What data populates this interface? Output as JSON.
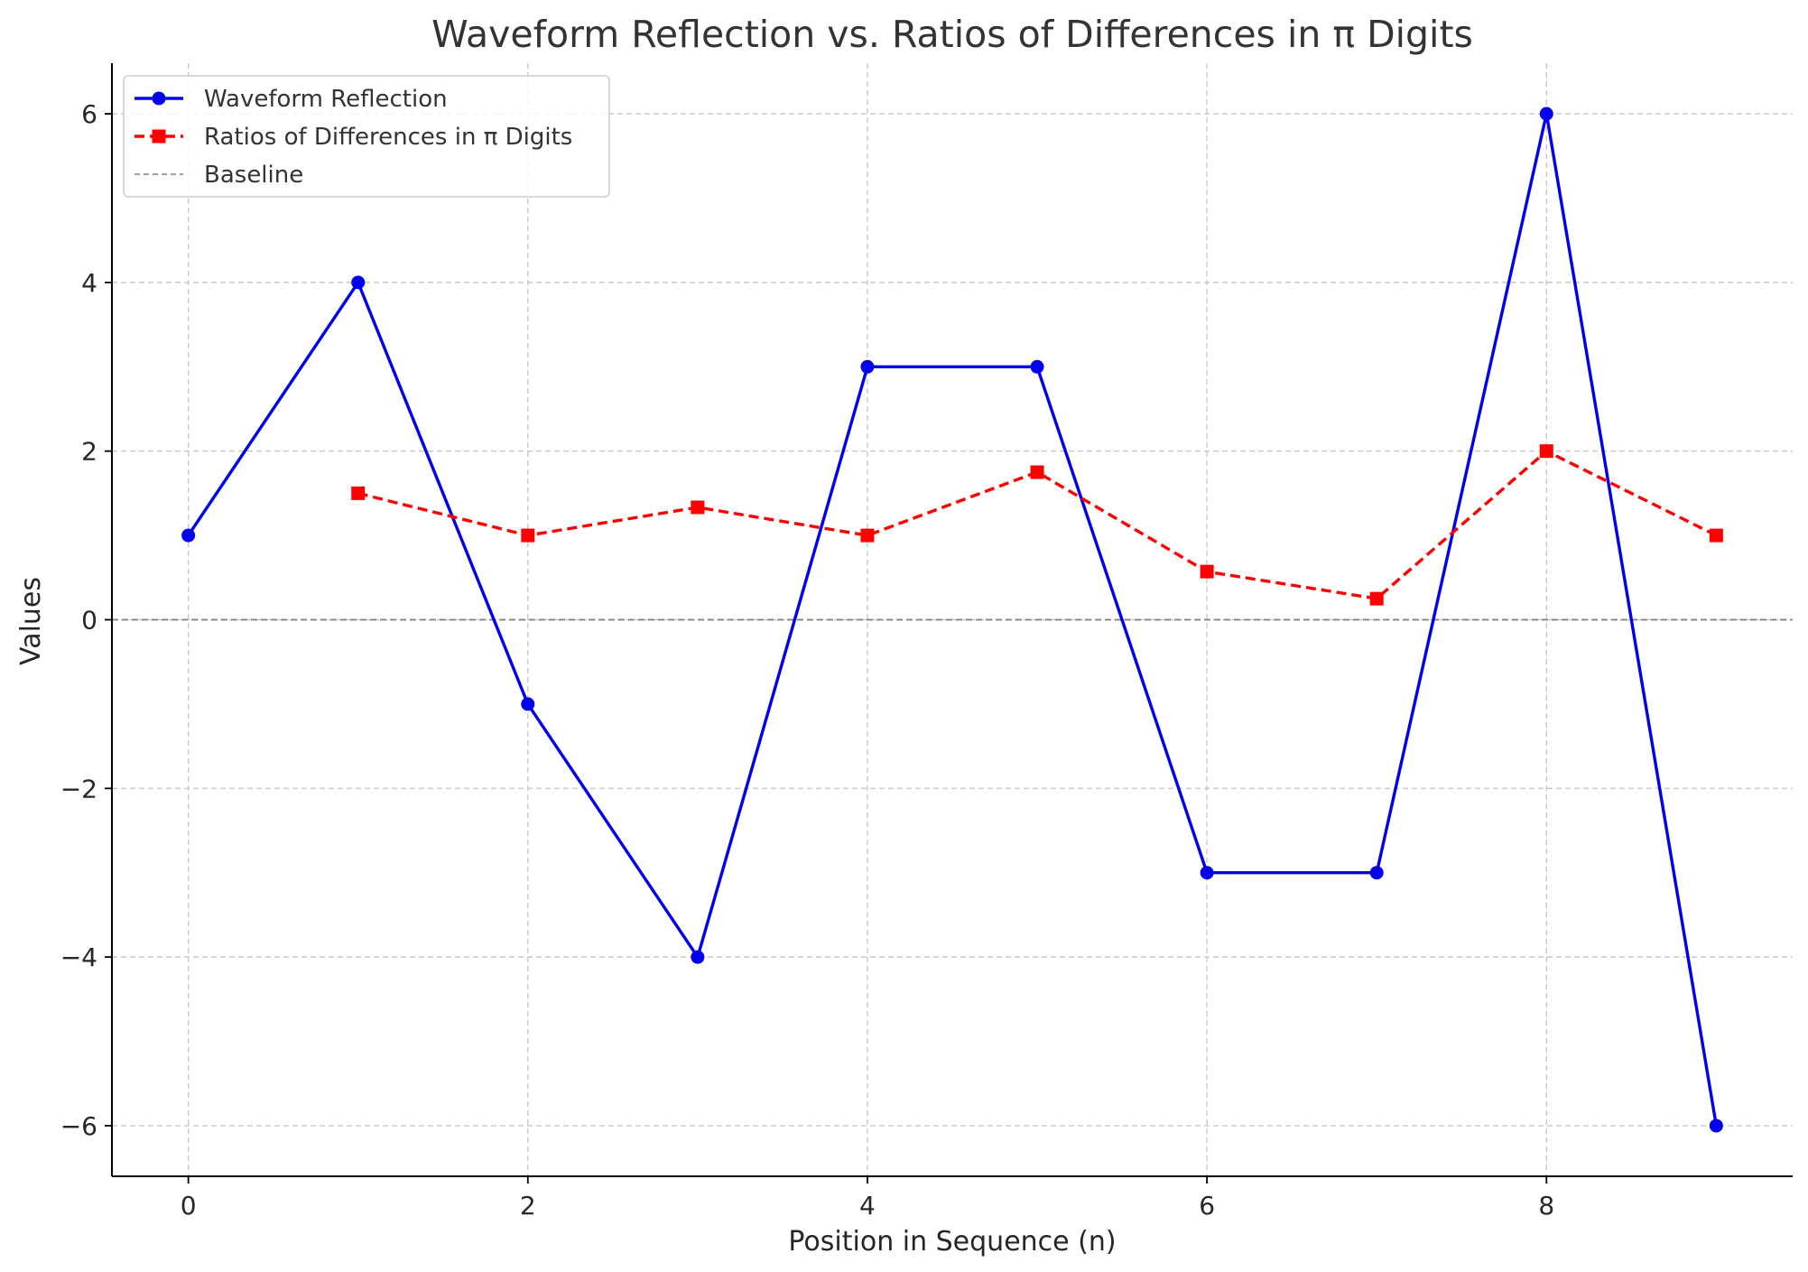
{
  "chart_data": {
    "type": "line",
    "title": "Waveform Reflection vs. Ratios of Differences in π Digits",
    "xlabel": "Position in Sequence (n)",
    "ylabel": "Values",
    "xlim": [
      -0.45,
      9.45
    ],
    "ylim": [
      -6.6,
      6.6
    ],
    "xticks": [
      0,
      2,
      4,
      6,
      8
    ],
    "yticks": [
      -6,
      -4,
      -2,
      0,
      2,
      4,
      6
    ],
    "tick_labels_x": [
      "0",
      "2",
      "4",
      "6",
      "8"
    ],
    "tick_labels_y": [
      "−6",
      "−4",
      "−2",
      "0",
      "2",
      "4",
      "6"
    ],
    "grid": true,
    "legend_position": "top-left",
    "series": [
      {
        "name": "Waveform Reflection",
        "color": "#0000ee",
        "line_style": "solid",
        "marker": "circle",
        "x": [
          0,
          1,
          2,
          3,
          4,
          5,
          6,
          7,
          8,
          9
        ],
        "y": [
          1,
          4,
          -1,
          -4,
          3,
          3,
          -3,
          -3,
          6,
          -6
        ]
      },
      {
        "name": "Ratios of Differences in π Digits",
        "color": "#ff0000",
        "line_style": "dashed",
        "marker": "square",
        "x": [
          1,
          2,
          3,
          4,
          5,
          6,
          7,
          8,
          9
        ],
        "y": [
          1.5,
          1.0,
          1.333,
          1.0,
          1.75,
          0.571,
          0.25,
          2.0,
          1.0
        ]
      }
    ],
    "reference_lines": [
      {
        "name": "Baseline",
        "y": 0,
        "color": "#808080",
        "line_style": "dashed"
      }
    ]
  }
}
